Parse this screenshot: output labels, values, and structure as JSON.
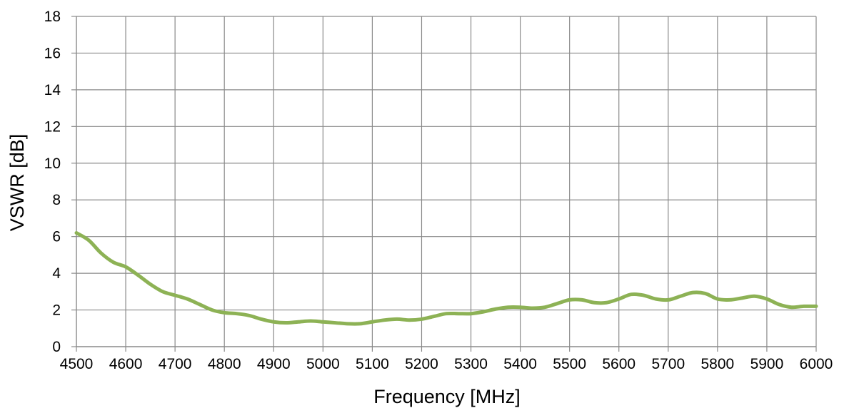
{
  "chart_data": {
    "type": "line",
    "title": "",
    "xlabel": "Frequency [MHz]",
    "ylabel": "VSWR [dB]",
    "xlim": [
      4500,
      6000
    ],
    "ylim": [
      0,
      18
    ],
    "xticks": [
      4500,
      4600,
      4700,
      4800,
      4900,
      5000,
      5100,
      5200,
      5300,
      5400,
      5500,
      5600,
      5700,
      5800,
      5900,
      6000
    ],
    "yticks": [
      0,
      2,
      4,
      6,
      8,
      10,
      12,
      14,
      16,
      18
    ],
    "grid": true,
    "legend": "none",
    "series": [
      {
        "color": "#8db255",
        "x": [
          4500,
          4525,
          4550,
          4575,
          4600,
          4625,
          4650,
          4675,
          4700,
          4725,
          4750,
          4775,
          4800,
          4825,
          4850,
          4875,
          4900,
          4925,
          4950,
          4975,
          5000,
          5025,
          5050,
          5075,
          5100,
          5125,
          5150,
          5175,
          5200,
          5225,
          5250,
          5275,
          5300,
          5325,
          5350,
          5375,
          5400,
          5425,
          5450,
          5475,
          5500,
          5525,
          5550,
          5575,
          5600,
          5625,
          5650,
          5675,
          5700,
          5725,
          5750,
          5775,
          5800,
          5825,
          5850,
          5875,
          5900,
          5925,
          5950,
          5975,
          6000
        ],
        "y": [
          6.2,
          5.8,
          5.1,
          4.6,
          4.35,
          3.9,
          3.4,
          3.0,
          2.8,
          2.6,
          2.3,
          2.0,
          1.85,
          1.8,
          1.7,
          1.5,
          1.35,
          1.3,
          1.35,
          1.4,
          1.35,
          1.3,
          1.25,
          1.25,
          1.35,
          1.45,
          1.5,
          1.45,
          1.5,
          1.65,
          1.8,
          1.8,
          1.8,
          1.9,
          2.05,
          2.15,
          2.15,
          2.1,
          2.15,
          2.35,
          2.55,
          2.55,
          2.4,
          2.4,
          2.6,
          2.85,
          2.8,
          2.6,
          2.55,
          2.75,
          2.95,
          2.9,
          2.6,
          2.55,
          2.65,
          2.75,
          2.6,
          2.3,
          2.15,
          2.2,
          2.2
        ]
      }
    ]
  }
}
